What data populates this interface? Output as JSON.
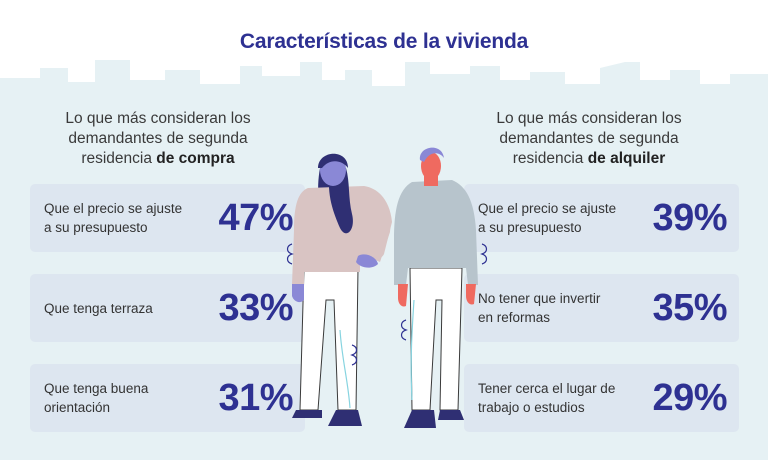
{
  "title": "Características de la vivienda",
  "left": {
    "heading_line1": "Lo que más consideran los",
    "heading_line2": "demandantes de segunda",
    "heading_prefix": "residencia ",
    "heading_bold": "de compra",
    "items": [
      {
        "line1": "Que el precio se ajuste",
        "line2": "a su presupuesto",
        "value": "47%"
      },
      {
        "line1": "Que tenga terraza",
        "line2": "",
        "value": "33%"
      },
      {
        "line1": "Que tenga buena",
        "line2": "orientación",
        "value": "31%"
      }
    ]
  },
  "right": {
    "heading_line1": "Lo que más consideran los",
    "heading_line2": "demandantes de segunda",
    "heading_prefix": "residencia ",
    "heading_bold": "de alquiler",
    "items": [
      {
        "line1": "Que el precio se ajuste",
        "line2": "a su presupuesto",
        "value": "39%"
      },
      {
        "line1": "No tener que invertir",
        "line2": "en reformas",
        "value": "35%"
      },
      {
        "line1": "Tener cerca el lugar de",
        "line2": "trabajo o estudios",
        "value": "29%"
      }
    ]
  },
  "colors": {
    "accent": "#2e3192",
    "card_bg": "#dde6f0",
    "skyline": "#e5f0f3"
  }
}
